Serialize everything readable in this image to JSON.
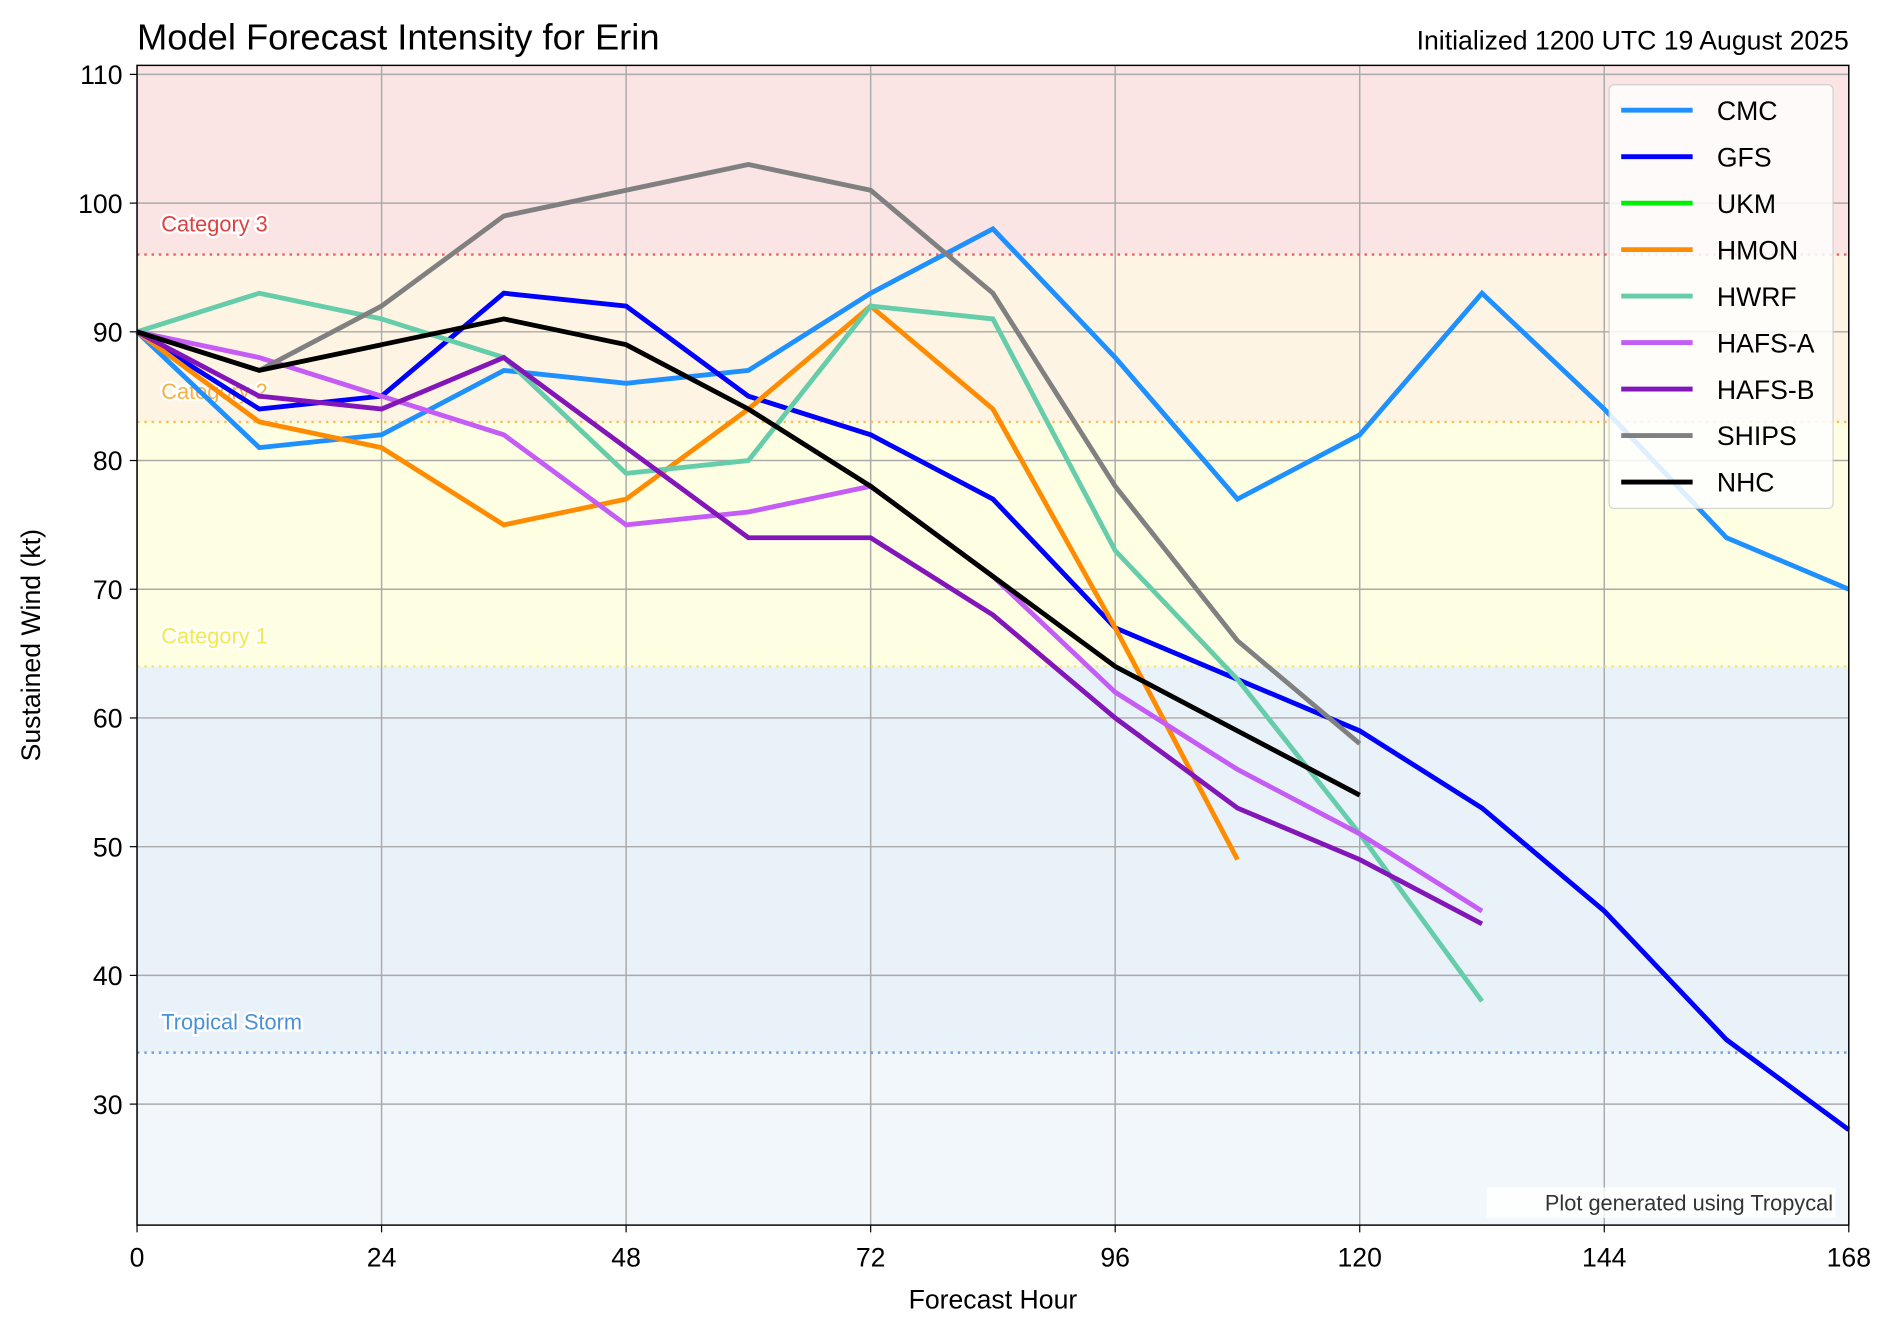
{
  "chart_data": {
    "type": "line",
    "title": "Model Forecast Intensity for Erin",
    "subtitle": "Initialized 1200 UTC 19 August 2025",
    "xlabel": "Forecast Hour",
    "ylabel": "Sustained Wind (kt)",
    "xlim": [
      0,
      168
    ],
    "ylim": [
      20.6,
      110.7
    ],
    "xticks": [
      0,
      24,
      48,
      72,
      96,
      120,
      144,
      168
    ],
    "yticks": [
      30,
      40,
      50,
      60,
      70,
      80,
      90,
      100,
      110
    ],
    "grid": true,
    "legend_position": "top-right",
    "credit": "Plot generated using Tropycal",
    "thresholds": [
      {
        "name": "Tropical Storm",
        "value": 34,
        "color": "#4a90d9",
        "band": "#e9f1f9"
      },
      {
        "name": "Category 1",
        "value": 64,
        "color": "#f5e84a",
        "band": "#fefee3"
      },
      {
        "name": "Category 2",
        "value": 83,
        "color": "#f8b040",
        "band": "#fdf4e4"
      },
      {
        "name": "Category 3",
        "value": 96,
        "color": "#e04040",
        "band": "#fae4e4"
      }
    ],
    "below_ts_band": "#f2f7fb",
    "series": [
      {
        "name": "CMC",
        "color": "#1e90ff",
        "x": [
          0,
          12,
          24,
          36,
          48,
          60,
          72,
          84,
          96,
          108,
          120,
          132,
          144,
          156,
          168
        ],
        "values": [
          90,
          81,
          82,
          87,
          86,
          87,
          93,
          98,
          88,
          77,
          82,
          93,
          84,
          74,
          70
        ]
      },
      {
        "name": "GFS",
        "color": "#0000ff",
        "x": [
          0,
          12,
          24,
          36,
          48,
          60,
          72,
          84,
          96,
          108,
          120,
          132,
          144,
          156,
          168
        ],
        "values": [
          90,
          84,
          85,
          93,
          92,
          85,
          82,
          77,
          67,
          63,
          59,
          53,
          45,
          35,
          28
        ]
      },
      {
        "name": "UKM",
        "color": "#00ee00",
        "x": [],
        "values": []
      },
      {
        "name": "HMON",
        "color": "#ff8c00",
        "x": [
          0,
          12,
          24,
          36,
          48,
          60,
          72,
          84,
          96,
          108
        ],
        "values": [
          90,
          83,
          81,
          75,
          77,
          84,
          92,
          84,
          67,
          49
        ]
      },
      {
        "name": "HWRF",
        "color": "#66cdaa",
        "x": [
          0,
          12,
          24,
          36,
          48,
          60,
          72,
          84,
          96,
          108,
          120,
          132
        ],
        "values": [
          90,
          93,
          91,
          88,
          79,
          80,
          92,
          91,
          73,
          63,
          51,
          38
        ]
      },
      {
        "name": "HAFS-A",
        "color": "#c45cf5",
        "x": [
          0,
          12,
          24,
          36,
          48,
          60,
          72,
          84,
          96,
          108,
          120,
          132
        ],
        "values": [
          90,
          88,
          85,
          82,
          75,
          76,
          78,
          71,
          62,
          56,
          51,
          45
        ]
      },
      {
        "name": "HAFS-B",
        "color": "#8316b8",
        "x": [
          0,
          12,
          24,
          36,
          48,
          60,
          72,
          84,
          96,
          108,
          120,
          132
        ],
        "values": [
          90,
          85,
          84,
          88,
          81,
          74,
          74,
          68,
          60,
          53,
          49,
          44
        ]
      },
      {
        "name": "SHIPS",
        "color": "#808080",
        "x": [
          0,
          12,
          24,
          36,
          48,
          60,
          72,
          84,
          96,
          108,
          120
        ],
        "values": [
          90,
          87,
          92,
          99,
          101,
          103,
          101,
          93,
          78,
          66,
          58
        ]
      },
      {
        "name": "NHC",
        "color": "#000000",
        "x": [
          0,
          12,
          24,
          36,
          48,
          60,
          72,
          84,
          96,
          108,
          120
        ],
        "values": [
          90,
          87,
          89,
          91,
          89,
          84,
          78,
          71,
          64,
          59,
          54
        ]
      }
    ]
  }
}
